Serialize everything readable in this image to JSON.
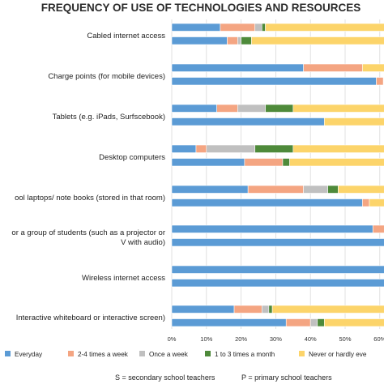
{
  "chart_data": {
    "type": "bar",
    "orientation": "horizontal",
    "stacked": true,
    "title": "FREQUENCY OF USE OF TECHNOLOGIES AND RESOURCES",
    "categories": [
      "Cabled internet access",
      "Charge points (for mobile devices)",
      "Tablets (e.g. iPads, Surfscebook)",
      "Desktop computers",
      "School laptops/ note books (stored in that room)",
      "Equipment for a group of students (such as a projector or TV with audio)",
      "Wireless internet access",
      "Interactive whiteboard or interactive screen"
    ],
    "category_lines": [
      [
        "Cabled internet access"
      ],
      [
        "Charge points (for mobile devices)"
      ],
      [
        "Tablets (e.g. iPads, Surfscebook)"
      ],
      [
        "Desktop computers"
      ],
      [
        "ool laptops/ note books (stored in that room)"
      ],
      [
        "or a group of students (such as a projector or",
        "V with audio)"
      ],
      [
        "Wireless internet access"
      ],
      [
        "Interactive whiteboard or interactive screen)"
      ]
    ],
    "bar_groups": [
      "S",
      "P"
    ],
    "series": [
      {
        "name": "Everyday",
        "color": "#5b9bd5",
        "S": [
          14,
          38,
          13,
          7,
          22,
          58,
          62,
          18
        ],
        "P": [
          16,
          59,
          44,
          21,
          55,
          62,
          62,
          33
        ]
      },
      {
        "name": "2-4 times a week",
        "color": "#f4a582",
        "S": [
          10,
          17,
          6,
          3,
          16,
          4,
          0,
          8
        ],
        "P": [
          3,
          2,
          0,
          11,
          2,
          0,
          0,
          7
        ]
      },
      {
        "name": "Once a week",
        "color": "#c0c0c0",
        "S": [
          2,
          0,
          8,
          14,
          7,
          0,
          0,
          2
        ],
        "P": [
          1,
          0,
          0,
          0,
          0,
          0,
          0,
          2
        ]
      },
      {
        "name": "1 to 3 times a month",
        "color": "#4e8a3a",
        "S": [
          1,
          0,
          8,
          11,
          3,
          0,
          0,
          1
        ],
        "P": [
          3,
          0,
          0,
          2,
          0,
          0,
          0,
          2
        ]
      },
      {
        "name": "Never or hardly ever",
        "color": "#fcd46a",
        "S": [
          35,
          7,
          27,
          27,
          14,
          0,
          0,
          33
        ],
        "P": [
          39,
          0,
          18,
          28,
          5,
          0,
          0,
          18
        ]
      }
    ],
    "xlim": [
      0,
      60
    ],
    "x_ticks": [
      "0%",
      "10%",
      "20%",
      "30%",
      "40%",
      "50%",
      "60%"
    ],
    "legend_labels": [
      "Everyday",
      "2-4 times a week",
      "Once a week",
      "1 to 3 times a month",
      "Never or hardly eve"
    ],
    "legend_position": "bottom",
    "footnote_s": "S = secondary school teachers",
    "footnote_p": "P = primary school teachers"
  }
}
